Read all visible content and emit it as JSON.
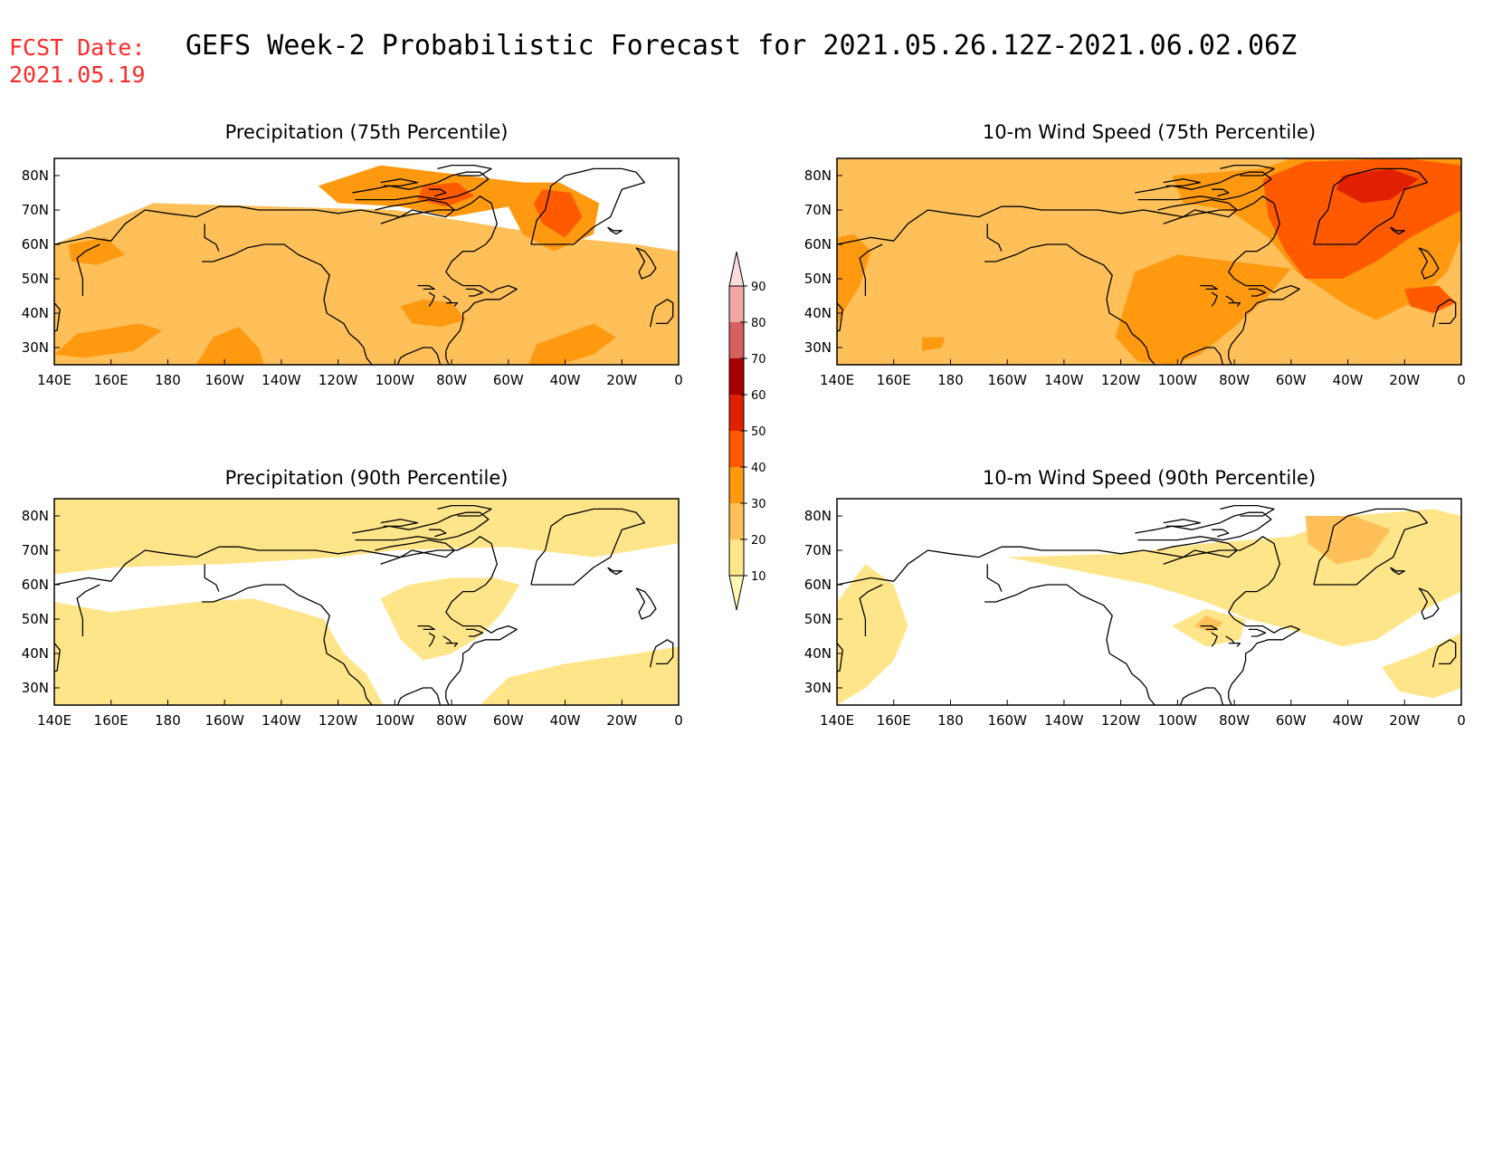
{
  "header": {
    "fcst_label": "FCST Date:",
    "fcst_date": "2021.05.19",
    "title": "GEFS Week-2 Probabilistic Forecast for 2021.05.26.12Z-2021.06.02.06Z"
  },
  "axes": {
    "lon_ticks": [
      "140E",
      "160E",
      "180",
      "160W",
      "140W",
      "120W",
      "100W",
      "80W",
      "60W",
      "40W",
      "20W",
      "0"
    ],
    "lat_ticks": [
      "80N",
      "70N",
      "60N",
      "50N",
      "40N",
      "30N"
    ],
    "lon_range": [
      140,
      360
    ],
    "lat_range": [
      25,
      85
    ]
  },
  "colorbar": {
    "levels": [
      10,
      20,
      30,
      40,
      50,
      60,
      70,
      80,
      90
    ],
    "labels": [
      "10",
      "20",
      "30",
      "40",
      "50",
      "60",
      "70",
      "80",
      "90"
    ],
    "colors": [
      "#fff7b3",
      "#ffe58a",
      "#ffc05a",
      "#ff9910",
      "#ff5a00",
      "#e02000",
      "#a80000",
      "#d85f5f",
      "#f1a6a6",
      "#fbdcdc"
    ]
  },
  "panels": [
    {
      "id": "precip-75",
      "title": "Precipitation (75th Percentile)",
      "regions": [
        {
          "level": 20,
          "pts": [
            [
              140,
              60
            ],
            [
              175,
              72
            ],
            [
              260,
              70
            ],
            [
              320,
              62
            ],
            [
              345,
              60
            ],
            [
              360,
              58
            ],
            [
              360,
              25
            ],
            [
              140,
              25
            ]
          ]
        },
        {
          "level": 30,
          "pts": [
            [
              140,
              28
            ],
            [
              148,
              34
            ],
            [
              170,
              37
            ],
            [
              178,
              35
            ],
            [
              168,
              29
            ],
            [
              150,
              27
            ]
          ]
        },
        {
          "level": 30,
          "pts": [
            [
              190,
              25
            ],
            [
              196,
              33
            ],
            [
              205,
              36
            ],
            [
              212,
              30
            ],
            [
              214,
              25
            ]
          ]
        },
        {
          "level": 30,
          "pts": [
            [
              262,
              42
            ],
            [
              266,
              37
            ],
            [
              276,
              36
            ],
            [
              285,
              38
            ],
            [
              280,
              43
            ],
            [
              270,
              44
            ]
          ]
        },
        {
          "level": 30,
          "pts": [
            [
              307,
              25
            ],
            [
              310,
              31
            ],
            [
              320,
              34
            ],
            [
              330,
              37
            ],
            [
              338,
              33
            ],
            [
              330,
              28
            ],
            [
              318,
              25
            ]
          ]
        },
        {
          "level": 30,
          "pts": [
            [
              233,
              77
            ],
            [
              255,
              83
            ],
            [
              285,
              80
            ],
            [
              305,
              78
            ],
            [
              300,
              71
            ],
            [
              280,
              68
            ],
            [
              262,
              71
            ],
            [
              240,
              72
            ]
          ]
        },
        {
          "level": 30,
          "pts": [
            [
              303,
              78
            ],
            [
              318,
              78
            ],
            [
              332,
              72
            ],
            [
              330,
              63
            ],
            [
              316,
              58
            ],
            [
              305,
              63
            ],
            [
              300,
              71
            ]
          ]
        },
        {
          "level": 30,
          "pts": [
            [
              145,
              60
            ],
            [
              158,
              62
            ],
            [
              165,
              57
            ],
            [
              155,
              54
            ],
            [
              146,
              55
            ]
          ]
        },
        {
          "level": 40,
          "pts": [
            [
              312,
              76
            ],
            [
              322,
              75
            ],
            [
              326,
              68
            ],
            [
              320,
              62
            ],
            [
              312,
              66
            ],
            [
              309,
              72
            ]
          ]
        },
        {
          "level": 40,
          "pts": [
            [
              270,
              77
            ],
            [
              282,
              78
            ],
            [
              288,
              74
            ],
            [
              278,
              71
            ],
            [
              268,
              73
            ]
          ]
        }
      ]
    },
    {
      "id": "wind-75",
      "title": "10-m Wind Speed (75th Percentile)",
      "regions": [
        {
          "level": 20,
          "pts": [
            [
              140,
              85
            ],
            [
              360,
              85
            ],
            [
              360,
              25
            ],
            [
              140,
              25
            ]
          ]
        },
        {
          "level": 30,
          "pts": [
            [
              140,
              62
            ],
            [
              146,
              63
            ],
            [
              152,
              58
            ],
            [
              148,
              48
            ],
            [
              142,
              40
            ],
            [
              140,
              36
            ]
          ]
        },
        {
          "level": 30,
          "pts": [
            [
              238,
              33
            ],
            [
              246,
              26
            ],
            [
              258,
              25
            ],
            [
              268,
              28
            ],
            [
              280,
              36
            ],
            [
              292,
              45
            ],
            [
              300,
              53
            ],
            [
              280,
              55
            ],
            [
              260,
              57
            ],
            [
              245,
              52
            ]
          ]
        },
        {
          "level": 30,
          "pts": [
            [
              258,
              80
            ],
            [
              290,
              82
            ],
            [
              300,
              85
            ],
            [
              360,
              85
            ],
            [
              360,
              62
            ],
            [
              355,
              52
            ],
            [
              345,
              44
            ],
            [
              330,
              38
            ],
            [
              320,
              42
            ],
            [
              302,
              52
            ],
            [
              292,
              62
            ],
            [
              278,
              70
            ],
            [
              262,
              72
            ]
          ]
        },
        {
          "level": 30,
          "pts": [
            [
              170,
              33
            ],
            [
              178,
              33
            ],
            [
              177,
              30
            ],
            [
              170,
              29
            ]
          ]
        },
        {
          "level": 40,
          "pts": [
            [
              290,
              79
            ],
            [
              305,
              84
            ],
            [
              340,
              85
            ],
            [
              360,
              83
            ],
            [
              360,
              70
            ],
            [
              342,
              62
            ],
            [
              330,
              55
            ],
            [
              318,
              50
            ],
            [
              305,
              50
            ],
            [
              298,
              58
            ],
            [
              292,
              68
            ]
          ]
        },
        {
          "level": 40,
          "pts": [
            [
              340,
              47
            ],
            [
              352,
              48
            ],
            [
              358,
              43
            ],
            [
              350,
              40
            ],
            [
              342,
              42
            ]
          ]
        },
        {
          "level": 50,
          "pts": [
            [
              318,
              80
            ],
            [
              335,
              82
            ],
            [
              345,
              79
            ],
            [
              335,
              73
            ],
            [
              325,
              72
            ],
            [
              316,
              76
            ]
          ]
        }
      ]
    },
    {
      "id": "precip-90",
      "title": "Precipitation (90th Percentile)",
      "regions": [
        {
          "level": 10,
          "pts": [
            [
              140,
              63
            ],
            [
              160,
              65
            ],
            [
              200,
              66
            ],
            [
              240,
              68
            ],
            [
              260,
              70
            ],
            [
              300,
              71
            ],
            [
              330,
              68
            ],
            [
              345,
              70
            ],
            [
              360,
              72
            ],
            [
              360,
              85
            ],
            [
              140,
              85
            ]
          ]
        },
        {
          "level": 10,
          "pts": [
            [
              140,
              25
            ],
            [
              140,
              55
            ],
            [
              160,
              52
            ],
            [
              190,
              55
            ],
            [
              210,
              56
            ],
            [
              235,
              50
            ],
            [
              242,
              40
            ],
            [
              250,
              34
            ],
            [
              256,
              25
            ]
          ]
        },
        {
          "level": 10,
          "pts": [
            [
              255,
              56
            ],
            [
              262,
              44
            ],
            [
              270,
              38
            ],
            [
              280,
              40
            ],
            [
              290,
              45
            ],
            [
              298,
              52
            ],
            [
              304,
              60
            ],
            [
              295,
              62
            ],
            [
              280,
              62
            ],
            [
              265,
              60
            ]
          ]
        },
        {
          "level": 10,
          "pts": [
            [
              290,
              25
            ],
            [
              300,
              33
            ],
            [
              320,
              37
            ],
            [
              345,
              40
            ],
            [
              360,
              42
            ],
            [
              360,
              25
            ]
          ]
        }
      ]
    },
    {
      "id": "wind-90",
      "title": "10-m Wind Speed (90th Percentile)",
      "regions": [
        {
          "level": 10,
          "pts": [
            [
              140,
              55
            ],
            [
              140,
              25
            ],
            [
              150,
              30
            ],
            [
              160,
              38
            ],
            [
              165,
              48
            ],
            [
              160,
              60
            ],
            [
              150,
              66
            ]
          ]
        },
        {
          "level": 10,
          "pts": [
            [
              200,
              68
            ],
            [
              240,
              69
            ],
            [
              270,
              72
            ],
            [
              300,
              74
            ],
            [
              320,
              80
            ],
            [
              350,
              82
            ],
            [
              360,
              80
            ],
            [
              360,
              58
            ],
            [
              345,
              52
            ],
            [
              330,
              44
            ],
            [
              318,
              42
            ],
            [
              300,
              47
            ],
            [
              285,
              50
            ],
            [
              270,
              55
            ],
            [
              250,
              60
            ],
            [
              225,
              64
            ]
          ]
        },
        {
          "level": 10,
          "pts": [
            [
              332,
              36
            ],
            [
              345,
              40
            ],
            [
              360,
              46
            ],
            [
              360,
              30
            ],
            [
              350,
              27
            ],
            [
              338,
              29
            ]
          ]
        },
        {
          "level": 10,
          "pts": [
            [
              258,
              48
            ],
            [
              270,
              42
            ],
            [
              282,
              44
            ],
            [
              284,
              50
            ],
            [
              270,
              53
            ]
          ]
        },
        {
          "level": 20,
          "pts": [
            [
              305,
              80
            ],
            [
              322,
              80
            ],
            [
              335,
              76
            ],
            [
              328,
              68
            ],
            [
              316,
              66
            ],
            [
              306,
              72
            ]
          ]
        },
        {
          "level": 20,
          "pts": [
            [
              266,
              48
            ],
            [
              272,
              46
            ],
            [
              276,
              49
            ],
            [
              270,
              51
            ]
          ]
        }
      ]
    }
  ]
}
